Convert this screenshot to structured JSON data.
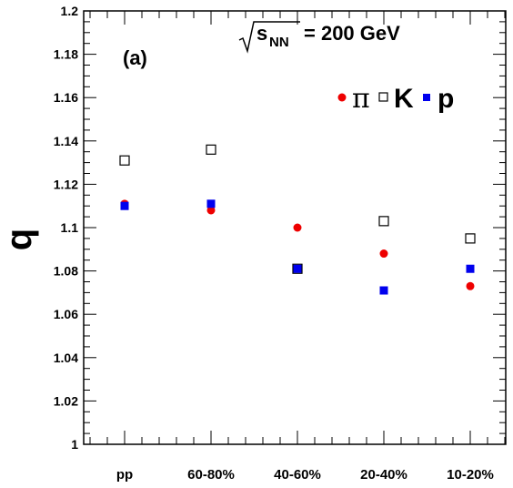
{
  "chart_data": {
    "type": "scatter",
    "panel_label": "(a)",
    "energy_label": {
      "variable": "s",
      "subscript": "NN",
      "value": "= 200 GeV"
    },
    "ylabel": "q",
    "xlabel": "",
    "ylim": [
      1.0,
      1.2
    ],
    "yticks": [
      "1",
      "1.02",
      "1.04",
      "1.06",
      "1.08",
      "1.1",
      "1.12",
      "1.14",
      "1.16",
      "1.18",
      "1.2"
    ],
    "categories": [
      "pp",
      "60-80%",
      "40-60%",
      "20-40%",
      "10-20%"
    ],
    "legend_position": "top-right",
    "grid": false,
    "series": [
      {
        "name": "π",
        "marker": "filled-circle",
        "color": "#ee0000",
        "values": [
          1.111,
          1.108,
          1.1,
          1.088,
          1.073
        ]
      },
      {
        "name": "K",
        "marker": "open-square",
        "color": "#000000",
        "values": [
          1.131,
          1.136,
          1.081,
          1.103,
          1.095
        ]
      },
      {
        "name": "p",
        "marker": "filled-square",
        "color": "#0000ee",
        "values": [
          1.11,
          1.111,
          1.081,
          1.071,
          1.081
        ]
      }
    ]
  }
}
